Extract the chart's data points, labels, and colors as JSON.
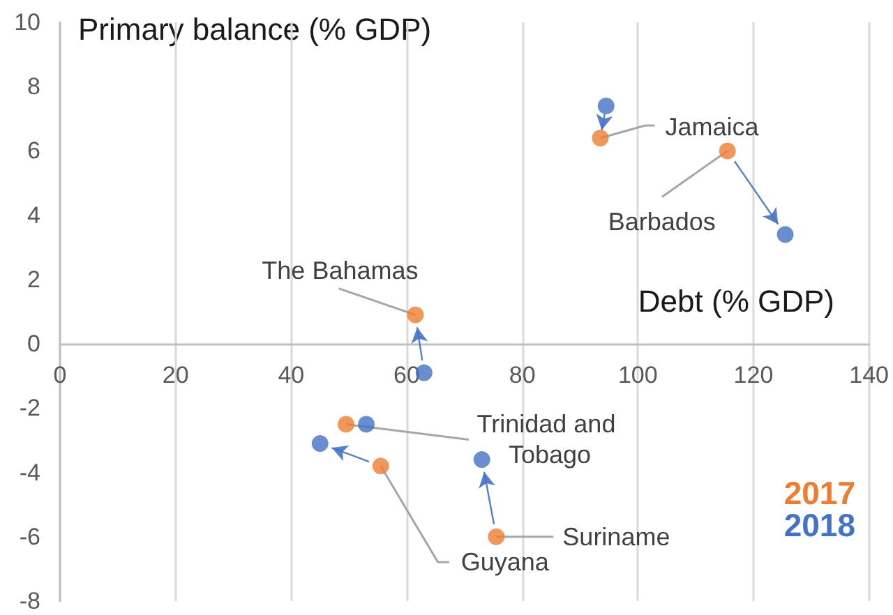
{
  "chart_data": {
    "type": "scatter",
    "xlabel": "Debt (% GDP)",
    "ylabel": "Primary balance (% GDP)",
    "series": [
      {
        "name": "2017",
        "color": "#ed7d31",
        "x": [
          93.5,
          115.5,
          61.5,
          49.5,
          55.5,
          75.5
        ],
        "values": [
          6.4,
          6.0,
          0.9,
          -2.5,
          -3.8,
          -6.0
        ]
      },
      {
        "name": "2018",
        "color": "#4472c4",
        "x": [
          94.5,
          125.5,
          63,
          53,
          45,
          73
        ],
        "values": [
          7.4,
          3.4,
          -0.9,
          -2.5,
          -3.1,
          -3.6
        ]
      }
    ],
    "annotations": [
      {
        "text": "Jamaica",
        "x": 93.5,
        "y": 6.4
      },
      {
        "text": "Barbados",
        "x": 115.5,
        "y": 6.0
      },
      {
        "text": "The Bahamas",
        "x": 61.5,
        "y": 0.9
      },
      {
        "text": "Trinidad and Tobago",
        "x": 49.5,
        "y": -2.5
      },
      {
        "text": "Guyana",
        "x": 55.5,
        "y": -3.8
      },
      {
        "text": "Suriname",
        "x": 75.5,
        "y": -6.0
      }
    ],
    "xlim": [
      0,
      140
    ],
    "xticks": [
      0,
      20,
      40,
      60,
      80,
      100,
      120,
      140
    ],
    "ylim": [
      -8,
      10
    ],
    "yticks": [
      -8,
      -6,
      -4,
      -2,
      0,
      2,
      4,
      6,
      8,
      10
    ],
    "grid": "x",
    "legend": "bottom right",
    "marker": "circle"
  }
}
